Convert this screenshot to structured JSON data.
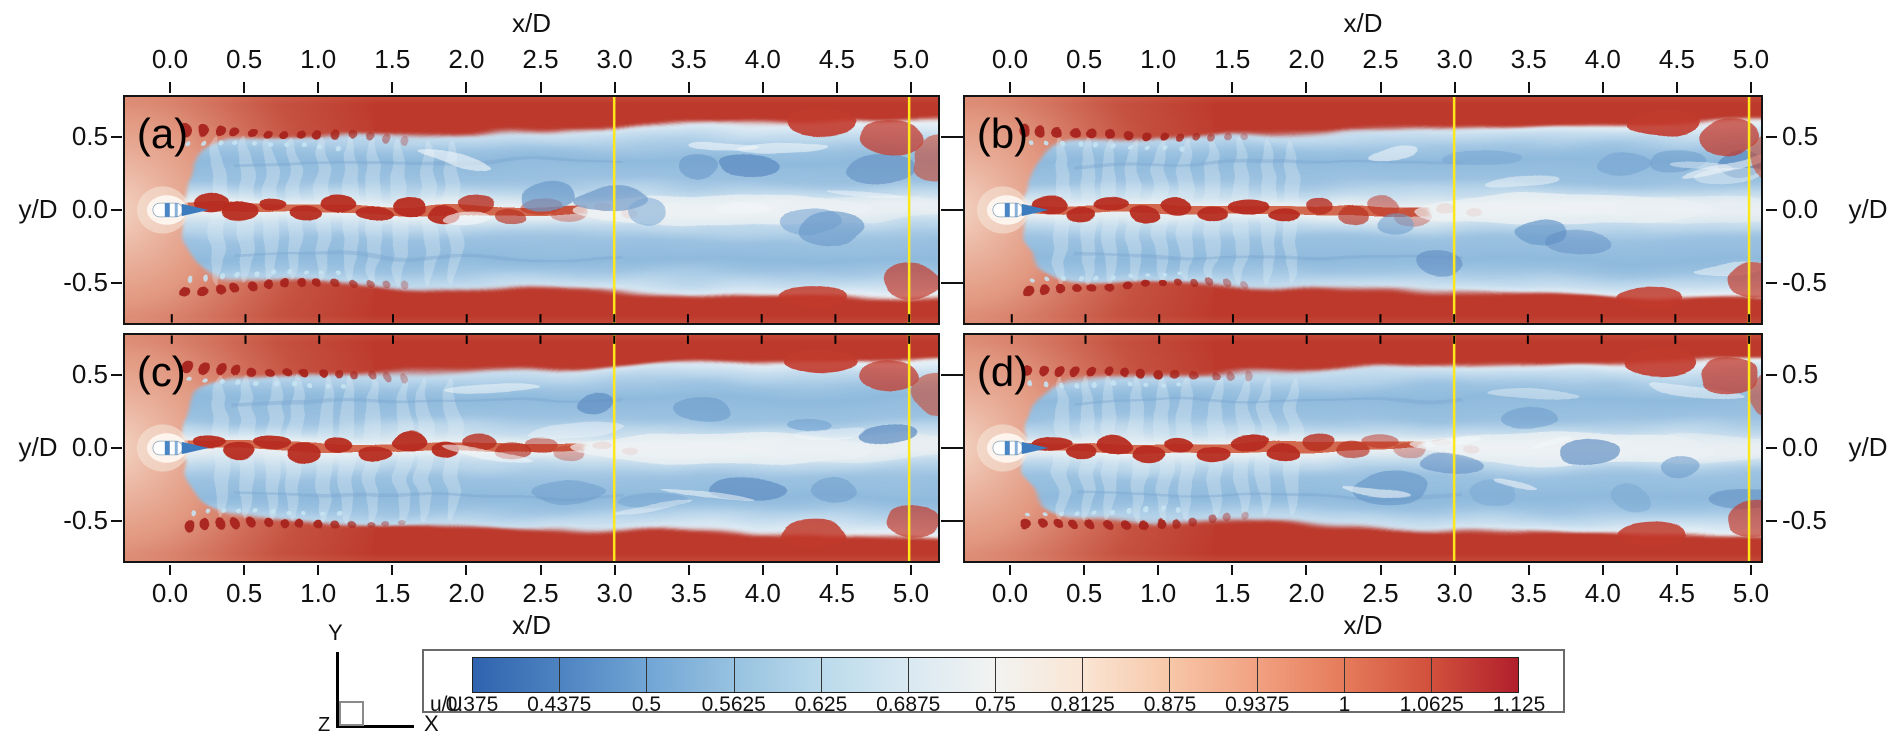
{
  "axes": {
    "x": {
      "title": "x/D",
      "ticks": [
        "0.0",
        "0.5",
        "1.0",
        "1.5",
        "2.0",
        "2.5",
        "3.0",
        "3.5",
        "4.0",
        "4.5",
        "5.0"
      ]
    },
    "y": {
      "title": "y/D",
      "ticks": [
        "0.5",
        "0.0",
        "-0.5"
      ]
    }
  },
  "panels": [
    {
      "id": "a",
      "label": "(a)",
      "seed": 11
    },
    {
      "id": "b",
      "label": "(b)",
      "seed": 47
    },
    {
      "id": "c",
      "label": "(c)",
      "seed": 83
    },
    {
      "id": "d",
      "label": "(d)",
      "seed": 129
    }
  ],
  "overlay_lines": {
    "color": "#ffe81a",
    "x_positions": [
      3.0,
      5.0
    ]
  },
  "colorbar": {
    "label": "u/U",
    "values": [
      "0.375",
      "0.4375",
      "0.5",
      "0.5625",
      "0.625",
      "0.6875",
      "0.75",
      "0.8125",
      "0.875",
      "0.9375",
      "1",
      "1.0625",
      "1.125"
    ],
    "stop_colors": [
      "#2f63ae",
      "#4d83c1",
      "#71a5d5",
      "#97c2e0",
      "#badaeb",
      "#d9e9f2",
      "#f2f3f1",
      "#fae5d4",
      "#f7c7a8",
      "#f1a181",
      "#e57b5a",
      "#d1503c",
      "#b11f2c"
    ]
  },
  "triad": {
    "x_label": "X",
    "y_label": "Y",
    "z_label": "Z"
  },
  "chart_data": {
    "type": "heatmap",
    "subtype": "filled-contour velocity field, 4 panels",
    "panels": [
      "(a)",
      "(b)",
      "(c)",
      "(d)"
    ],
    "xlabel": "x/D",
    "ylabel": "y/D",
    "x_ticks": [
      0.0,
      0.5,
      1.0,
      1.5,
      2.0,
      2.5,
      3.0,
      3.5,
      4.0,
      4.5,
      5.0
    ],
    "y_ticks": [
      0.5,
      0.0,
      -0.5
    ],
    "xlim": [
      -0.31,
      5.15
    ],
    "ylim": [
      -0.79,
      0.79
    ],
    "colorbar": {
      "label": "u/U",
      "levels": [
        0.375,
        0.4375,
        0.5,
        0.5625,
        0.625,
        0.6875,
        0.75,
        0.8125,
        0.875,
        0.9375,
        1,
        1.0625,
        1.125
      ],
      "colormap": "blue-white-red diverging"
    },
    "annotation_lines_xD": [
      3.0,
      5.0
    ],
    "legend_position": "bottom colorbar",
    "grid": false
  }
}
